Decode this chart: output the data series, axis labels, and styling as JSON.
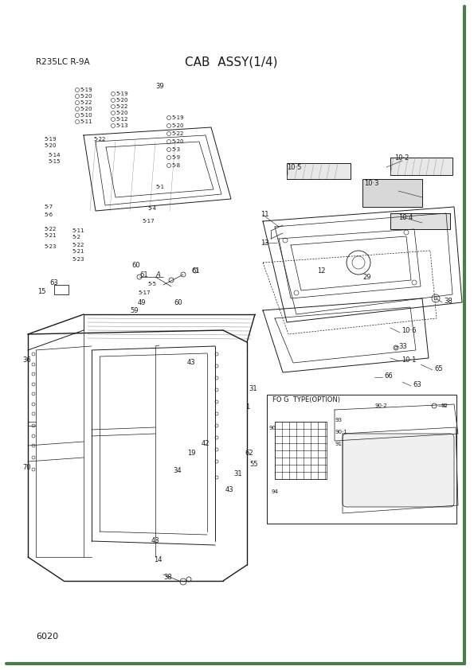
{
  "title": "CAB  ASSY(1/4)",
  "model": "R235LC R-9A",
  "page_number": "6020",
  "bg_color": "#ffffff",
  "border_color": "#4a7c4e",
  "text_color": "#1a1a1a",
  "title_fontsize": 11,
  "label_fontsize": 6,
  "small_fontsize": 5,
  "fog_label": "FO G  TYPE(OPTION)"
}
